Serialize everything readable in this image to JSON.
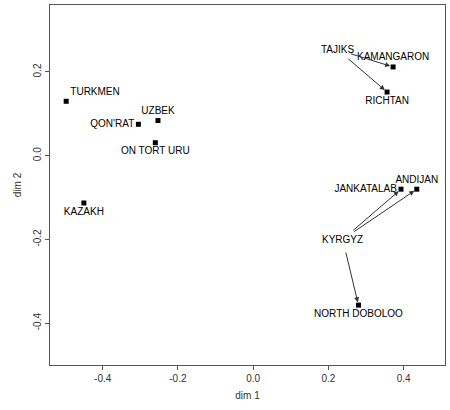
{
  "chart_data": {
    "type": "scatter",
    "xlabel": "dim 1",
    "ylabel": "dim 2",
    "labels": [
      "TURKMEN",
      "KAZAKH",
      "QON'RAT",
      "UZBEK",
      "ON TORT URU",
      "KAMANGARON",
      "RICHTAN",
      "JANKATALAB",
      "ANDIJAN",
      "NORTH DOBOLOO"
    ],
    "x": [
      -0.497,
      -0.45,
      -0.305,
      -0.253,
      -0.26,
      0.372,
      0.356,
      0.393,
      0.435,
      0.28
    ],
    "y": [
      0.13,
      -0.113,
      0.075,
      0.084,
      0.031,
      0.212,
      0.152,
      -0.08,
      -0.08,
      -0.357
    ],
    "color": "#000000",
    "marker": "square",
    "xlim": [
      -0.54,
      0.51
    ],
    "ylim": [
      -0.5,
      0.36
    ],
    "xticks": [
      -0.4,
      -0.2,
      {
        "value": 0,
        "label": "0.0"
      },
      0.2,
      0.4
    ],
    "yticks": [
      -0.4,
      -0.2,
      {
        "value": 0,
        "label": "0.0"
      },
      0.2
    ],
    "grid": false,
    "annotations": [
      {
        "text": "TAJIKS",
        "x": 0.225,
        "y": 0.253,
        "points": [
          "KAMANGARON",
          "RICHTAN"
        ]
      },
      {
        "text": "KYRGYZ",
        "x": 0.238,
        "y": -0.2,
        "points": [
          "JANKATALAB",
          "ANDIJAN",
          "NORTH DOBOLOO"
        ]
      }
    ]
  }
}
